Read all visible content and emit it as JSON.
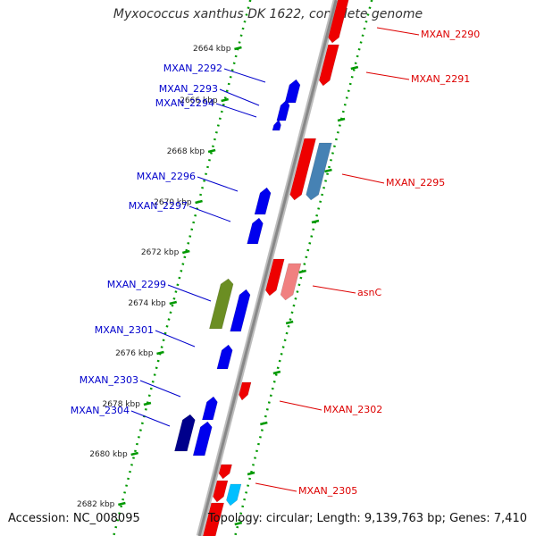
{
  "title": "Myxococcus xanthus DK 1622, complete genome",
  "footer": {
    "accession": "Accession: NC_008095",
    "summary": "Topology: circular; Length: 9,139,763 bp; Genes: 7,410"
  },
  "ticks": [
    "2664 kbp",
    "2666 kbp",
    "2668 kbp",
    "2670 kbp",
    "2672 kbp",
    "2674 kbp",
    "2676 kbp",
    "2678 kbp",
    "2680 kbp",
    "2682 kbp"
  ],
  "gene_labels": [
    {
      "text": "MXAN_2290",
      "color": "#dd0000"
    },
    {
      "text": "MXAN_2291",
      "color": "#dd0000"
    },
    {
      "text": "MXAN_2292",
      "color": "#0000cc"
    },
    {
      "text": "MXAN_2293",
      "color": "#0000cc"
    },
    {
      "text": "MXAN_2294",
      "color": "#0000cc"
    },
    {
      "text": "MXAN_2295",
      "color": "#dd0000"
    },
    {
      "text": "MXAN_2296",
      "color": "#0000cc"
    },
    {
      "text": "MXAN_2297",
      "color": "#0000cc"
    },
    {
      "text": "MXAN_2299",
      "color": "#0000cc"
    },
    {
      "text": "asnC",
      "color": "#dd0000"
    },
    {
      "text": "MXAN_2301",
      "color": "#0000cc"
    },
    {
      "text": "MXAN_2302",
      "color": "#dd0000"
    },
    {
      "text": "MXAN_2303",
      "color": "#0000cc"
    },
    {
      "text": "MXAN_2304",
      "color": "#0000cc"
    },
    {
      "text": "MXAN_2305",
      "color": "#dd0000"
    }
  ],
  "colors": {
    "forward_gene": "#ee0000",
    "reverse_gene": "#0000ee",
    "backbone": "#888888",
    "tick_track": "#009900"
  }
}
